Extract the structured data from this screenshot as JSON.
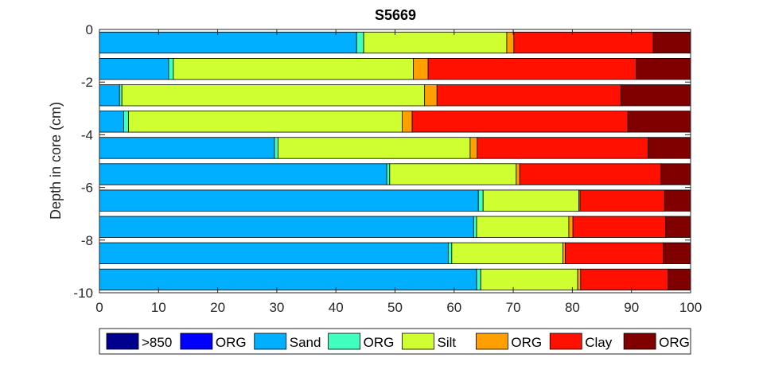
{
  "chart_data": {
    "type": "bar",
    "orientation": "horizontal",
    "stacked": true,
    "title": "S5669",
    "xlabel": "",
    "ylabel": "Depth in core (cm)",
    "xlim": [
      0,
      100
    ],
    "ylim": [
      -10,
      0
    ],
    "xticks": [
      "0",
      "10",
      "20",
      "30",
      "40",
      "50",
      "60",
      "70",
      "80",
      "90",
      "100"
    ],
    "yticks": [
      "0",
      "-2",
      "-4",
      "-6",
      "-8",
      "-10"
    ],
    "grid": false,
    "legend_position": "bottom-outside",
    "depths": [
      -0.5,
      -1.5,
      -2.5,
      -3.5,
      -4.5,
      -5.5,
      -6.5,
      -7.5,
      -8.5,
      -9.5
    ],
    "series": [
      {
        "name": ">850",
        "color": "#00008F",
        "values": [
          0,
          0,
          0,
          0,
          0,
          0,
          0,
          0,
          0,
          0
        ]
      },
      {
        "name": "ORG",
        "color": "#0000FF",
        "values": [
          0,
          0,
          0,
          0,
          0,
          0,
          0,
          0,
          0,
          0
        ]
      },
      {
        "name": "Sand",
        "color": "#00AFFF",
        "values": [
          43.5,
          11.7,
          3.4,
          4.1,
          29.6,
          48.6,
          64.1,
          63.3,
          59.0,
          63.8
        ]
      },
      {
        "name": "ORG",
        "color": "#40FFBF",
        "values": [
          1.2,
          0.8,
          0.4,
          0.8,
          0.6,
          0.5,
          0.8,
          0.5,
          0.6,
          0.7
        ]
      },
      {
        "name": "Silt",
        "color": "#CFFF30",
        "values": [
          24.2,
          40.6,
          51.2,
          46.3,
          32.5,
          21.4,
          16.2,
          15.6,
          18.8,
          16.4
        ]
      },
      {
        "name": "ORG",
        "color": "#FF9F00",
        "values": [
          1.2,
          2.5,
          2.1,
          1.7,
          1.2,
          0.6,
          0.2,
          0.7,
          0.4,
          0.5
        ]
      },
      {
        "name": "Clay",
        "color": "#FF1000",
        "values": [
          23.6,
          35.2,
          31.1,
          36.5,
          28.9,
          23.9,
          14.3,
          15.7,
          16.6,
          14.8
        ]
      },
      {
        "name": "ORG",
        "color": "#800000",
        "values": [
          6.3,
          9.2,
          11.8,
          10.6,
          7.2,
          5.0,
          4.4,
          4.2,
          4.6,
          3.8
        ]
      }
    ]
  }
}
